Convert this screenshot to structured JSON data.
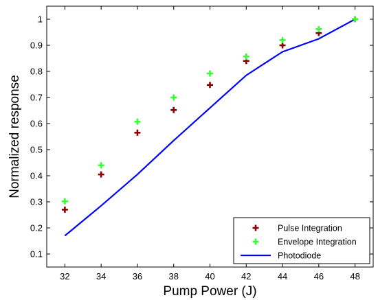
{
  "chart_data": {
    "type": "scatter",
    "title": "",
    "xlabel": "Pump Power (J)",
    "ylabel": "Normalized response",
    "xlim": [
      31,
      49
    ],
    "ylim": [
      0.05,
      1.05
    ],
    "xticks": [
      32,
      34,
      36,
      38,
      40,
      42,
      44,
      46,
      48
    ],
    "yticks": [
      0.1,
      0.2,
      0.3,
      0.4,
      0.5,
      0.6,
      0.7,
      0.8,
      0.9,
      1
    ],
    "ytick_labels": [
      "0.1",
      "0.2",
      "0.3",
      "0.4",
      "0.5",
      "0.6",
      "0.7",
      "0.8",
      "0.9",
      "1"
    ],
    "grid": false,
    "legend_position": "bottom-right",
    "series": [
      {
        "name": "Pulse Integration",
        "kind": "marker-plus",
        "color": "#8b0000",
        "x": [
          32,
          34,
          36,
          38,
          40,
          42,
          44,
          46,
          48
        ],
        "y": [
          0.27,
          0.405,
          0.565,
          0.652,
          0.748,
          0.84,
          0.9,
          0.947,
          1.0
        ]
      },
      {
        "name": "Envelope Integration",
        "kind": "marker-plus",
        "color": "#33ff33",
        "x": [
          32,
          34,
          36,
          38,
          40,
          42,
          44,
          46,
          48
        ],
        "y": [
          0.302,
          0.44,
          0.607,
          0.7,
          0.792,
          0.857,
          0.92,
          0.962,
          1.0
        ]
      },
      {
        "name": "Photodiode",
        "kind": "line",
        "color": "#0000ff",
        "x": [
          32,
          34,
          36,
          38,
          40,
          42,
          44,
          46,
          48
        ],
        "y": [
          0.17,
          0.285,
          0.405,
          0.535,
          0.66,
          0.785,
          0.875,
          0.925,
          1.0
        ]
      }
    ]
  }
}
